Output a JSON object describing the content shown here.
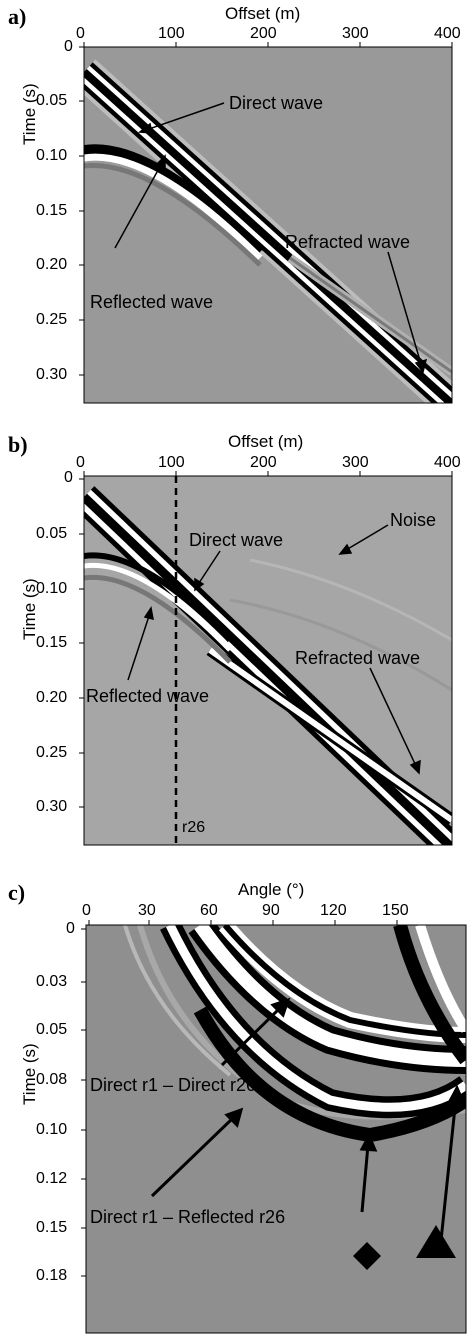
{
  "panels": [
    {
      "letter": "a)",
      "x_title": "Offset (m)",
      "y_title": "Time (s)",
      "x_ticks": [
        "0",
        "100",
        "200",
        "300",
        "400"
      ],
      "y_ticks": [
        "0",
        "0.05",
        "0.10",
        "0.15",
        "0.20",
        "0.25",
        "0.30"
      ],
      "annotations": [
        "Direct wave",
        "Refracted wave",
        "Reflected wave"
      ]
    },
    {
      "letter": "b)",
      "x_title": "Offset (m)",
      "y_title": "Time (s)",
      "x_ticks": [
        "0",
        "100",
        "200",
        "300",
        "400"
      ],
      "y_ticks": [
        "0",
        "0.05",
        "0.10",
        "0.15",
        "0.20",
        "0.25",
        "0.30"
      ],
      "annotations": [
        "Noise",
        "Direct wave",
        "Refracted wave",
        "Reflected wave",
        "r26"
      ]
    },
    {
      "letter": "c)",
      "x_title": "Angle (°)",
      "y_title": "Time (s)",
      "x_ticks": [
        "0",
        "30",
        "60",
        "90",
        "120",
        "150"
      ],
      "y_ticks": [
        "0",
        "0.03",
        "0.05",
        "0.08",
        "0.10",
        "0.12",
        "0.15",
        "0.18"
      ],
      "annotations": [
        "Direct r1 – Direct r26",
        "Direct r1 – Reflected r26"
      ]
    }
  ],
  "colors": {
    "background": "#999999",
    "trough": "#000000",
    "peak": "#ffffff"
  },
  "markers": [
    "diamond",
    "triangle"
  ]
}
